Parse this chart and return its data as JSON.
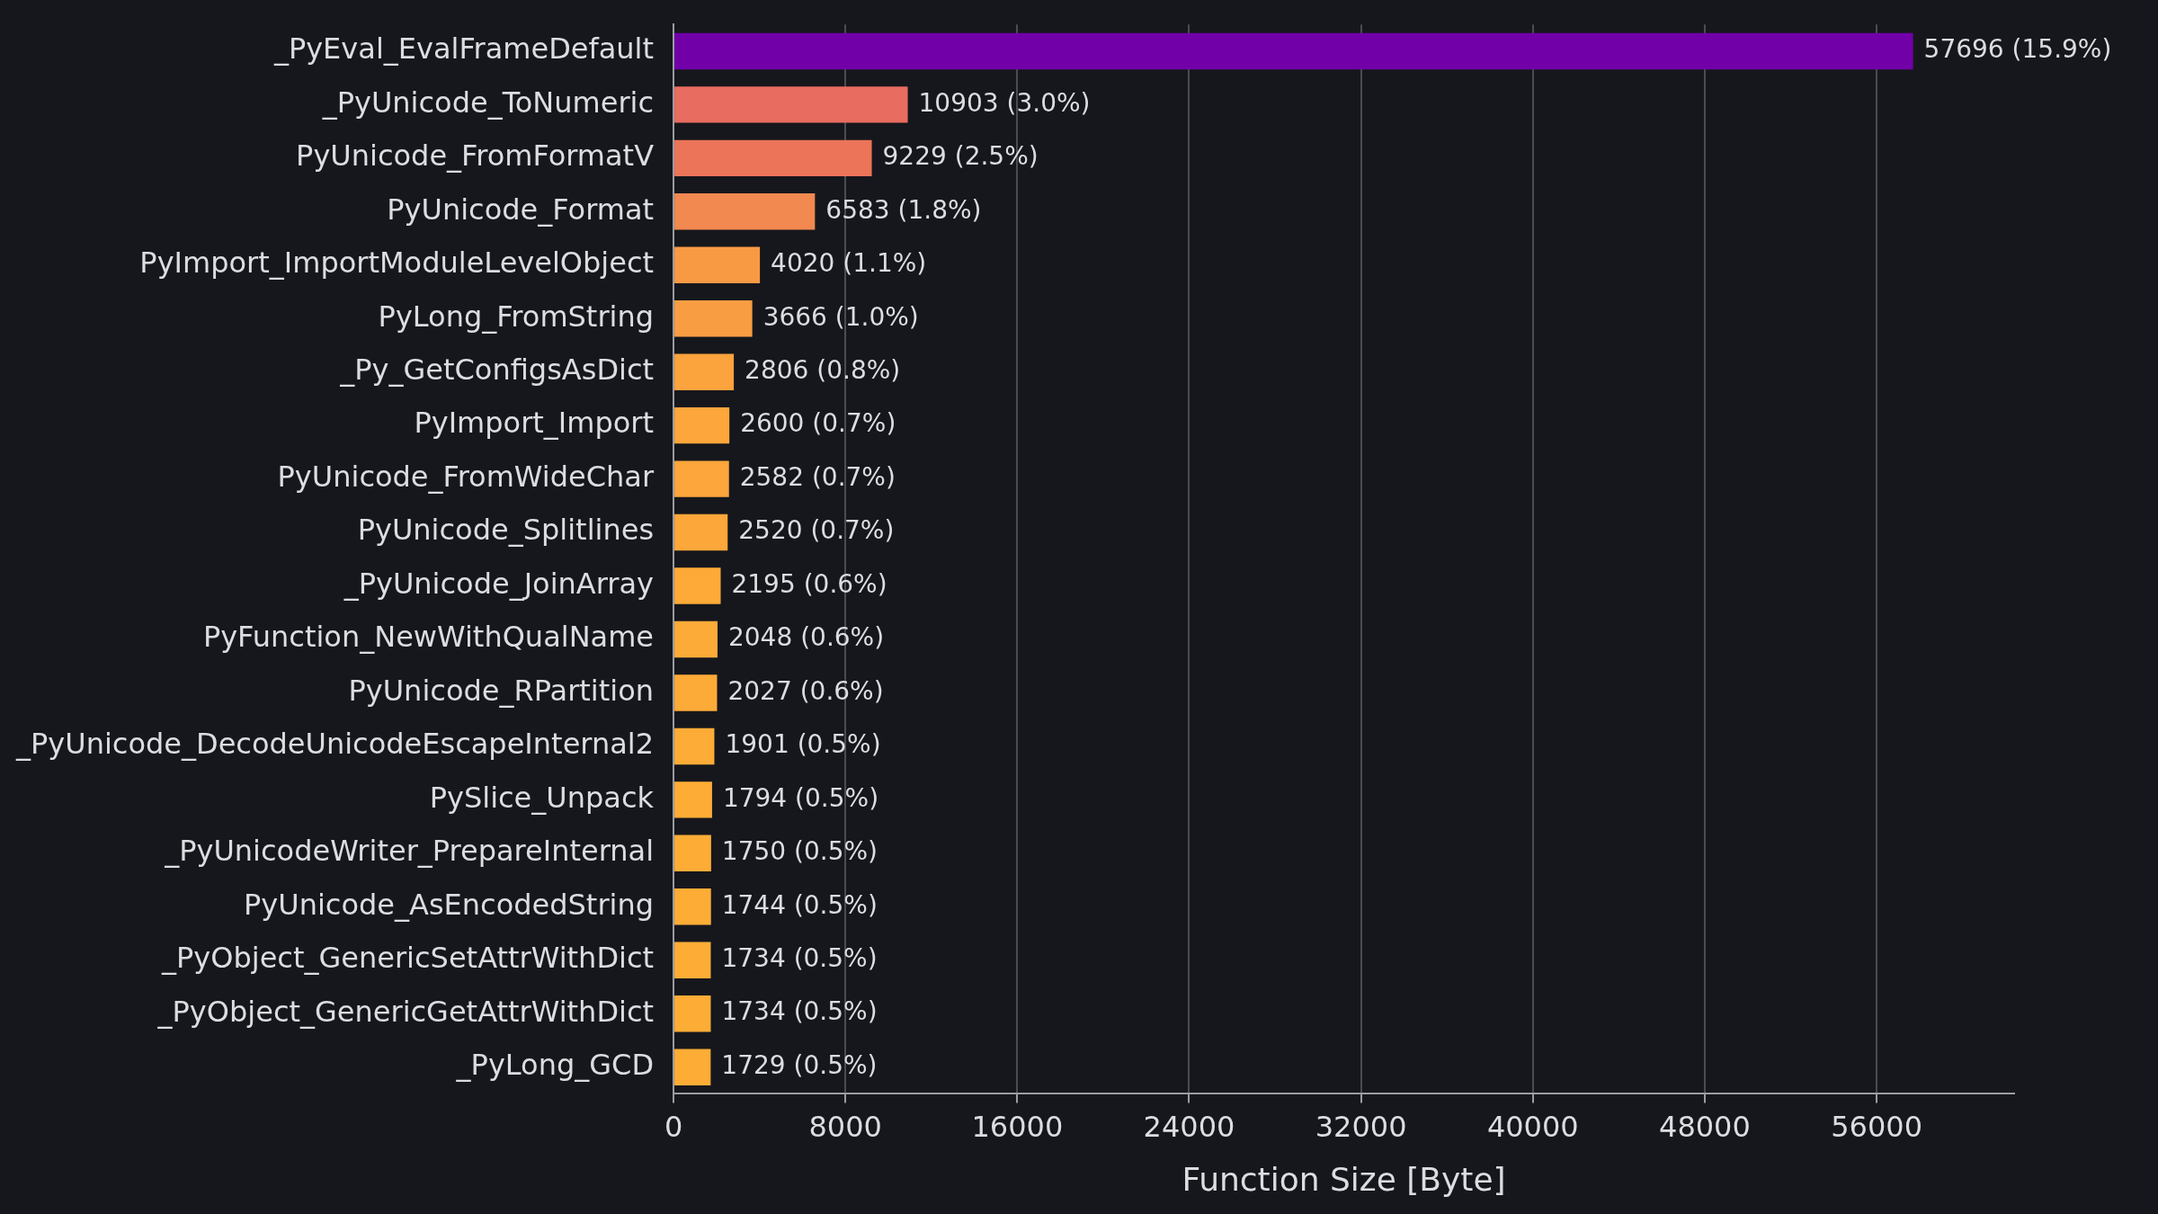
{
  "chart_data": {
    "type": "bar",
    "orientation": "horizontal",
    "xlabel": "Function Size [Byte]",
    "categories": [
      "_PyEval_EvalFrameDefault",
      "_PyUnicode_ToNumeric",
      "PyUnicode_FromFormatV",
      "PyUnicode_Format",
      "PyImport_ImportModuleLevelObject",
      "PyLong_FromString",
      "_Py_GetConfigsAsDict",
      "PyImport_Import",
      "PyUnicode_FromWideChar",
      "PyUnicode_Splitlines",
      "_PyUnicode_JoinArray",
      "PyFunction_NewWithQualName",
      "PyUnicode_RPartition",
      "_PyUnicode_DecodeUnicodeEscapeInternal2",
      "PySlice_Unpack",
      "_PyUnicodeWriter_PrepareInternal",
      "PyUnicode_AsEncodedString",
      "_PyObject_GenericSetAttrWithDict",
      "_PyObject_GenericGetAttrWithDict",
      "_PyLong_GCD"
    ],
    "values": [
      57696,
      10903,
      9229,
      6583,
      4020,
      3666,
      2806,
      2600,
      2582,
      2520,
      2195,
      2048,
      2027,
      1901,
      1794,
      1750,
      1744,
      1734,
      1734,
      1729
    ],
    "value_labels": [
      "57696 (15.9%)",
      "10903 (3.0%)",
      "9229 (2.5%)",
      "6583 (1.8%)",
      "4020 (1.1%)",
      "3666 (1.0%)",
      "2806 (0.8%)",
      "2600 (0.7%)",
      "2582 (0.7%)",
      "2520 (0.7%)",
      "2195 (0.6%)",
      "2048 (0.6%)",
      "2027 (0.6%)",
      "1901 (0.5%)",
      "1794 (0.5%)",
      "1750 (0.5%)",
      "1744 (0.5%)",
      "1734 (0.5%)",
      "1734 (0.5%)",
      "1729 (0.5%)"
    ],
    "colors": [
      "#7100a8",
      "#e86c5f",
      "#eb7459",
      "#f18950",
      "#f89a44",
      "#f99d42",
      "#fba33d",
      "#fca63b",
      "#fca63b",
      "#fca73a",
      "#fdaa38",
      "#fdab38",
      "#fdab38",
      "#fdac37",
      "#fdad36",
      "#fdad36",
      "#fdad36",
      "#fdad36",
      "#fdad36",
      "#fdad36"
    ],
    "xlim": [
      0,
      62400
    ],
    "xticks": [
      0,
      8000,
      16000,
      24000,
      32000,
      40000,
      48000,
      56000
    ],
    "grid": "x",
    "legend": false
  }
}
